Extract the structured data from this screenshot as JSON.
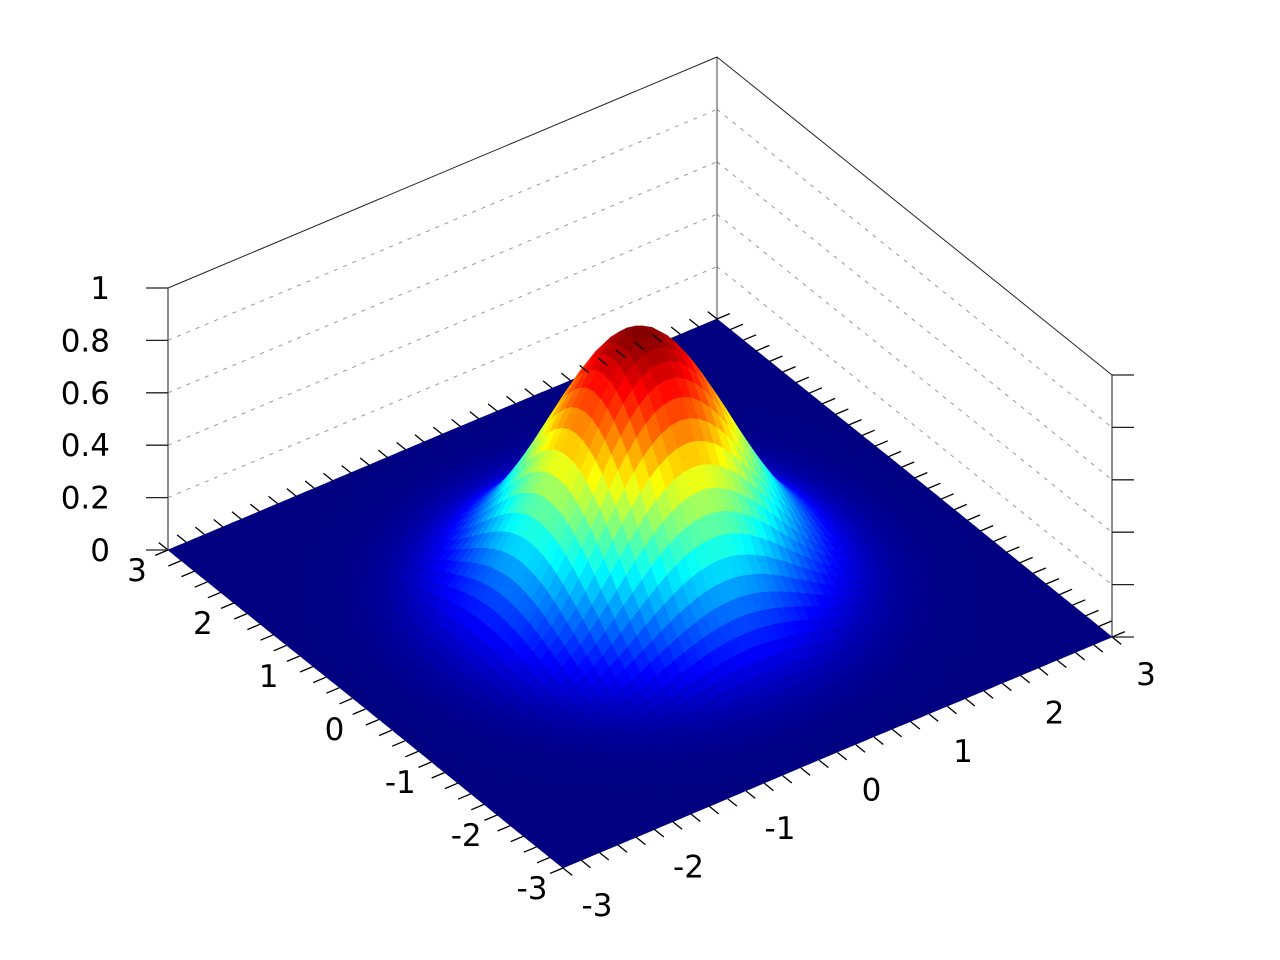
{
  "chart_data": {
    "type": "surface",
    "title": "",
    "xlabel": "",
    "ylabel": "",
    "zlabel": "",
    "xlim": [
      -3,
      3
    ],
    "ylim": [
      -3,
      3
    ],
    "zlim": [
      0,
      1
    ],
    "x_ticks": [
      "-3",
      "-2",
      "-1",
      "0",
      "1",
      "2",
      "3"
    ],
    "y_ticks": [
      "-3",
      "-2",
      "-1",
      "0",
      "1",
      "2",
      "3"
    ],
    "z_ticks": [
      "0",
      "0.2",
      "0.4",
      "0.6",
      "0.8",
      "1"
    ],
    "minor_tick_step": 0.2,
    "grid": true,
    "colormap": "jet",
    "shading": "flat",
    "surface": {
      "shape": "gaussian",
      "peak_xy": [
        0,
        0
      ],
      "peak_z": 1,
      "sigma": 0.85,
      "grid_step": 0.1
    },
    "colors": {
      "floor": "#00007f",
      "axis": "#000000",
      "grid": "#999999"
    }
  }
}
